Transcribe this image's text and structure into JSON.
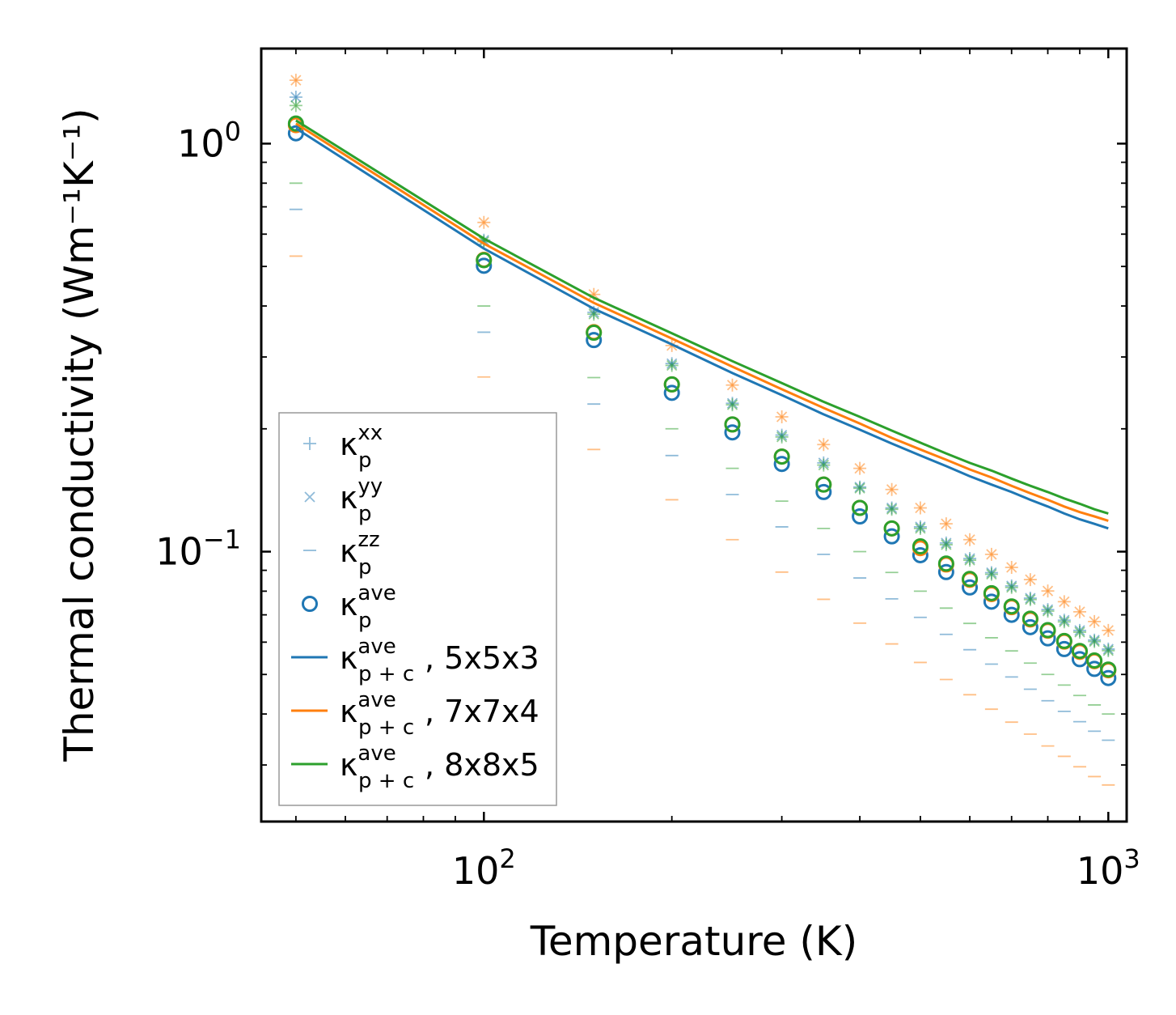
{
  "chart_data": {
    "type": "scatter",
    "title": "",
    "xlabel": "Temperature (K)",
    "ylabel": "Thermal conductivity (Wm⁻¹K⁻¹)",
    "xscale": "log",
    "yscale": "log",
    "xlim": [
      44,
      1070
    ],
    "ylim": [
      0.0218,
      1.71
    ],
    "x_ticks": [
      {
        "value": 100,
        "base": "10",
        "exp": "2"
      },
      {
        "value": 1000,
        "base": "10",
        "exp": "3"
      }
    ],
    "y_ticks": [
      {
        "value": 1,
        "base": "10",
        "exp": "0"
      },
      {
        "value": 0.1,
        "base": "10",
        "exp": "−1"
      }
    ],
    "x": [
      50,
      100,
      150,
      200,
      250,
      300,
      350,
      400,
      450,
      500,
      550,
      600,
      650,
      700,
      750,
      800,
      850,
      900,
      950,
      1000
    ],
    "colors": {
      "blue": "#1f77b4",
      "orange": "#ff7f0e",
      "green": "#2ca02c"
    },
    "marker_series": [
      {
        "name": "kxx 5x5x3",
        "marker": "plus",
        "color": "#1f77b4",
        "values": [
          1.3,
          0.58,
          0.386,
          0.289,
          0.231,
          0.193,
          0.165,
          0.144,
          0.128,
          0.115,
          0.105,
          0.0962,
          0.0888,
          0.0824,
          0.0769,
          0.0721,
          0.0679,
          0.0641,
          0.0607,
          0.0577
        ]
      },
      {
        "name": "kyy 5x5x3",
        "marker": "x",
        "color": "#1f77b4",
        "values": [
          1.3,
          0.58,
          0.386,
          0.289,
          0.231,
          0.193,
          0.165,
          0.144,
          0.128,
          0.115,
          0.105,
          0.0962,
          0.0888,
          0.0824,
          0.0769,
          0.0721,
          0.0679,
          0.0641,
          0.0607,
          0.0577
        ]
      },
      {
        "name": "kzz 5x5x3",
        "marker": "dash",
        "color": "#1f77b4",
        "values": [
          0.69,
          0.345,
          0.23,
          0.172,
          0.138,
          0.115,
          0.0985,
          0.0862,
          0.0766,
          0.069,
          0.0627,
          0.0575,
          0.053,
          0.0493,
          0.046,
          0.0431,
          0.0406,
          0.0383,
          0.0363,
          0.0345
        ]
      },
      {
        "name": "kave 5x5x3",
        "marker": "circle",
        "color": "#1f77b4",
        "values": [
          1.06,
          0.502,
          0.33,
          0.245,
          0.196,
          0.164,
          0.14,
          0.122,
          0.109,
          0.098,
          0.0891,
          0.0817,
          0.0754,
          0.07,
          0.0653,
          0.0613,
          0.0577,
          0.0545,
          0.0516,
          0.049
        ]
      },
      {
        "name": "kxx 7x7x4",
        "marker": "plus",
        "color": "#ff7f0e",
        "values": [
          1.43,
          0.641,
          0.427,
          0.32,
          0.256,
          0.214,
          0.183,
          0.16,
          0.142,
          0.128,
          0.117,
          0.107,
          0.0985,
          0.0915,
          0.0854,
          0.0801,
          0.0754,
          0.0712,
          0.0674,
          0.0641
        ]
      },
      {
        "name": "kyy 7x7x4",
        "marker": "x",
        "color": "#ff7f0e",
        "values": [
          1.43,
          0.641,
          0.427,
          0.32,
          0.256,
          0.214,
          0.183,
          0.16,
          0.142,
          0.128,
          0.117,
          0.107,
          0.0985,
          0.0915,
          0.0854,
          0.0801,
          0.0754,
          0.0712,
          0.0674,
          0.0641
        ]
      },
      {
        "name": "kzz 7x7x4",
        "marker": "dash",
        "color": "#ff7f0e",
        "values": [
          0.53,
          0.268,
          0.178,
          0.134,
          0.107,
          0.0891,
          0.0764,
          0.0668,
          0.0594,
          0.0535,
          0.0486,
          0.0446,
          0.0411,
          0.0382,
          0.0357,
          0.0334,
          0.0315,
          0.0297,
          0.0281,
          0.0268
        ]
      },
      {
        "name": "kave 7x7x4",
        "marker": "circle",
        "color": "#ff7f0e",
        "values": [
          1.11,
          0.519,
          0.345,
          0.257,
          0.205,
          0.171,
          0.146,
          0.128,
          0.114,
          0.102,
          0.093,
          0.0853,
          0.0787,
          0.0731,
          0.0682,
          0.064,
          0.0602,
          0.0568,
          0.0539,
          0.0512
        ]
      },
      {
        "name": "kxx 8x8x5",
        "marker": "plus",
        "color": "#2ca02c",
        "values": [
          1.24,
          0.575,
          0.382,
          0.286,
          0.229,
          0.191,
          0.163,
          0.143,
          0.127,
          0.114,
          0.104,
          0.0953,
          0.088,
          0.0817,
          0.0763,
          0.0715,
          0.0673,
          0.0635,
          0.0602,
          0.0572
        ]
      },
      {
        "name": "kyy 8x8x5",
        "marker": "x",
        "color": "#2ca02c",
        "values": [
          1.24,
          0.575,
          0.382,
          0.286,
          0.229,
          0.191,
          0.163,
          0.143,
          0.127,
          0.114,
          0.104,
          0.0953,
          0.088,
          0.0817,
          0.0763,
          0.0715,
          0.0673,
          0.0635,
          0.0602,
          0.0572
        ]
      },
      {
        "name": "kzz 8x8x5",
        "marker": "dash",
        "color": "#2ca02c",
        "values": [
          0.8,
          0.4,
          0.267,
          0.2,
          0.16,
          0.133,
          0.114,
          0.1,
          0.0889,
          0.08,
          0.0727,
          0.0667,
          0.0615,
          0.0571,
          0.0533,
          0.05,
          0.0471,
          0.0444,
          0.0421,
          0.04
        ]
      },
      {
        "name": "kave 8x8x5",
        "marker": "circle",
        "color": "#2ca02c",
        "values": [
          1.12,
          0.518,
          0.344,
          0.257,
          0.205,
          0.171,
          0.146,
          0.128,
          0.114,
          0.103,
          0.0935,
          0.0857,
          0.0791,
          0.0734,
          0.0685,
          0.0642,
          0.0604,
          0.0571,
          0.0541,
          0.0514
        ]
      }
    ],
    "line_series": [
      {
        "name": "p+c 5x5x3",
        "color": "#1f77b4",
        "values": [
          1.09,
          0.553,
          0.394,
          0.322,
          0.274,
          0.242,
          0.217,
          0.199,
          0.184,
          0.172,
          0.162,
          0.153,
          0.146,
          0.14,
          0.134,
          0.129,
          0.124,
          0.12,
          0.117,
          0.114
        ]
      },
      {
        "name": "p+c 7x7x4",
        "color": "#ff7f0e",
        "values": [
          1.12,
          0.569,
          0.407,
          0.333,
          0.284,
          0.25,
          0.225,
          0.206,
          0.19,
          0.178,
          0.168,
          0.159,
          0.152,
          0.145,
          0.139,
          0.134,
          0.129,
          0.125,
          0.122,
          0.119
        ]
      },
      {
        "name": "p+c 8x8x5",
        "color": "#2ca02c",
        "values": [
          1.14,
          0.585,
          0.419,
          0.343,
          0.293,
          0.259,
          0.233,
          0.214,
          0.198,
          0.185,
          0.174,
          0.165,
          0.158,
          0.151,
          0.145,
          0.14,
          0.135,
          0.131,
          0.127,
          0.124
        ]
      }
    ],
    "legend": {
      "position": "lower-left",
      "entries": [
        {
          "marker": "plus",
          "color": "#1f77b4",
          "base": "κ",
          "sub": "p",
          "sup": "xx",
          "tail": ""
        },
        {
          "marker": "x",
          "color": "#1f77b4",
          "base": "κ",
          "sub": "p",
          "sup": "yy",
          "tail": ""
        },
        {
          "marker": "dash",
          "color": "#1f77b4",
          "base": "κ",
          "sub": "p",
          "sup": "zz",
          "tail": ""
        },
        {
          "marker": "circle",
          "color": "#1f77b4",
          "base": "κ",
          "sub": "p",
          "sup": "ave",
          "tail": ""
        },
        {
          "marker": "line",
          "color": "#1f77b4",
          "base": "κ",
          "sub": "p + c",
          "sup": "ave",
          "tail": ", 5x5x3"
        },
        {
          "marker": "line",
          "color": "#ff7f0e",
          "base": "κ",
          "sub": "p + c",
          "sup": "ave",
          "tail": ", 7x7x4"
        },
        {
          "marker": "line",
          "color": "#2ca02c",
          "base": "κ",
          "sub": "p + c",
          "sup": "ave",
          "tail": ", 8x8x5"
        }
      ]
    }
  }
}
